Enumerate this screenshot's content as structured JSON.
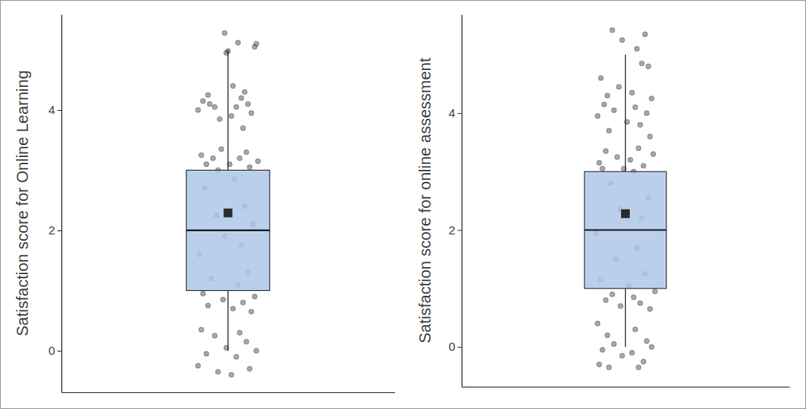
{
  "chart_data": [
    {
      "type": "box",
      "y_label": "Satisfaction score for Online Learning",
      "color": "#aec7e8",
      "ylim": [
        -0.69,
        5.59
      ],
      "yticks": [
        0,
        2,
        4
      ],
      "xlim": [
        -1,
        1
      ],
      "tick_labels": "y",
      "stats": {
        "min": 0,
        "q1": 1,
        "median": 2,
        "q3": 3,
        "max": 5,
        "mean": 2.29
      },
      "points": {
        "x": [
          -0.02,
          0.06,
          0.16,
          0.0,
          0.17,
          -0.01,
          0.03,
          0.1,
          -0.12,
          0.08,
          -0.15,
          0.12,
          -0.08,
          0.05,
          -0.18,
          0.14,
          0.02,
          -0.05,
          0.09,
          -0.11,
          -0.04,
          0.11,
          -0.16,
          0.07,
          -0.09,
          0.18,
          0.01,
          -0.13,
          0.13,
          -0.06,
          0.04,
          -0.14,
          0.1,
          -0.07,
          0.15,
          -0.02,
          0.08,
          -0.17,
          0.12,
          -0.1,
          0.06,
          -0.15,
          0.16,
          -0.03,
          0.09,
          -0.12,
          0.03,
          0.14,
          -0.16,
          0.07,
          -0.08,
          0.11,
          -0.01,
          0.17,
          -0.13,
          0.05,
          -0.18,
          0.13,
          -0.06,
          0.02
        ],
        "y": [
          5.28,
          5.12,
          5.05,
          4.98,
          5.1,
          4.95,
          4.4,
          4.3,
          4.25,
          4.2,
          4.15,
          4.1,
          4.05,
          4.05,
          4.0,
          3.95,
          3.9,
          3.85,
          3.7,
          4.1,
          3.35,
          3.3,
          3.25,
          3.2,
          3.2,
          3.15,
          3.1,
          3.1,
          3.05,
          3.0,
          2.85,
          2.7,
          2.4,
          2.25,
          2.1,
          1.9,
          1.75,
          1.6,
          1.3,
          1.2,
          1.1,
          0.95,
          0.9,
          0.85,
          0.8,
          0.75,
          0.7,
          0.65,
          0.35,
          0.3,
          0.25,
          0.15,
          0.05,
          0.0,
          -0.05,
          -0.1,
          -0.25,
          -0.3,
          -0.35,
          -0.4
        ]
      }
    },
    {
      "type": "box",
      "y_label": "Satisfaction score for online assessment",
      "color": "#aec7e8",
      "ylim": [
        -0.68,
        5.69
      ],
      "yticks": [
        0,
        2,
        4
      ],
      "xlim": [
        -1,
        1
      ],
      "tick_labels": "y",
      "stats": {
        "min": 0,
        "q1": 1,
        "median": 2,
        "q3": 3,
        "max": 5,
        "mean": 2.28
      },
      "points": {
        "x": [
          -0.08,
          0.12,
          -0.02,
          0.07,
          0.1,
          0.14,
          -0.15,
          -0.04,
          0.04,
          -0.11,
          0.16,
          -0.13,
          0.06,
          -0.07,
          0.13,
          -0.17,
          0.01,
          0.09,
          -0.1,
          0.15,
          0.08,
          -0.12,
          0.17,
          -0.05,
          0.03,
          -0.16,
          0.11,
          -0.01,
          -0.14,
          0.05,
          -0.09,
          0.14,
          -0.03,
          0.1,
          -0.18,
          0.07,
          -0.06,
          0.12,
          -0.15,
          0.02,
          0.18,
          -0.08,
          0.05,
          -0.12,
          0.09,
          -0.03,
          0.15,
          -0.17,
          0.06,
          -0.11,
          0.13,
          -0.07,
          0.16,
          -0.14,
          0.04,
          -0.02,
          0.11,
          -0.16,
          0.08,
          -0.1
        ],
        "y": [
          5.42,
          5.35,
          5.25,
          5.1,
          4.85,
          4.8,
          4.6,
          4.45,
          4.35,
          4.3,
          4.25,
          4.15,
          4.1,
          4.05,
          4.0,
          3.95,
          3.85,
          3.8,
          3.7,
          3.6,
          3.4,
          3.35,
          3.3,
          3.25,
          3.2,
          3.15,
          3.1,
          3.05,
          3.05,
          3.0,
          2.8,
          2.55,
          2.35,
          2.2,
          1.95,
          1.7,
          1.5,
          1.25,
          1.15,
          1.05,
          0.95,
          0.9,
          0.85,
          0.8,
          0.75,
          0.7,
          0.65,
          0.4,
          0.3,
          0.2,
          0.1,
          0.05,
          0.0,
          -0.05,
          -0.1,
          -0.15,
          -0.25,
          -0.3,
          -0.35,
          -0.35
        ]
      }
    }
  ]
}
